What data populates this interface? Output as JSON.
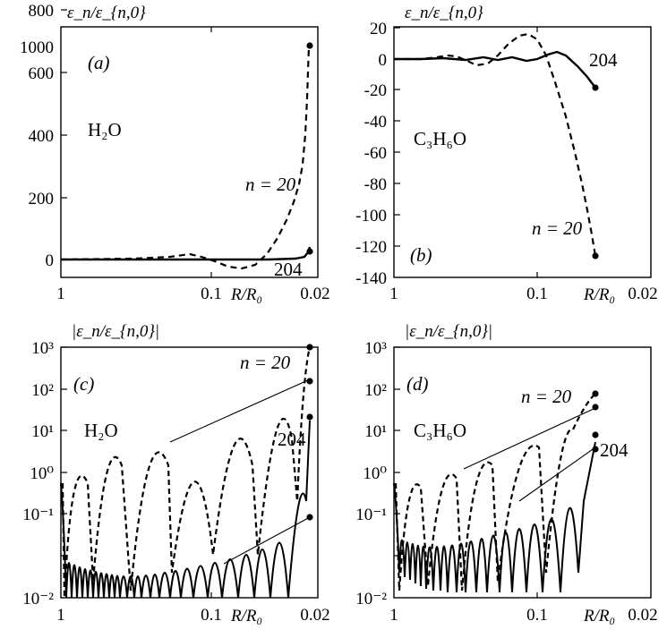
{
  "chart_data": [
    {
      "panel": "a",
      "type": "line",
      "panel_label": "(a)",
      "substance_label": "H₂O",
      "ylabel": "ε_n/ε_{n,0}",
      "xlabel": "R/R₀",
      "x_scale": "log",
      "xlim": [
        1,
        0.02
      ],
      "ylim": [
        -100,
        1100
      ],
      "xticks": [
        "1",
        "0.1",
        "0.02"
      ],
      "yticks": [
        "0",
        "200",
        "400",
        "600",
        "800",
        "1000"
      ],
      "series": [
        {
          "name": "n = 20",
          "style": "dashed",
          "x": [
            1,
            0.5,
            0.3,
            0.2,
            0.15,
            0.12,
            0.1,
            0.085,
            0.07,
            0.06,
            0.05,
            0.045,
            0.04,
            0.035,
            0.03,
            0.027,
            0.025,
            0.023,
            0.022,
            0.021,
            0.0205,
            0.02
          ],
          "y": [
            0,
            1,
            -1,
            3,
            8,
            12,
            5,
            -15,
            -40,
            -45,
            -30,
            0,
            40,
            90,
            180,
            280,
            380,
            520,
            620,
            760,
            880,
            1010
          ]
        },
        {
          "name": "204",
          "style": "solid",
          "x": [
            1,
            0.3,
            0.1,
            0.05,
            0.04,
            0.03,
            0.025,
            0.022,
            0.021,
            0.02
          ],
          "y": [
            0,
            0,
            0,
            0,
            0,
            1,
            2,
            5,
            15,
            42
          ]
        }
      ]
    },
    {
      "panel": "b",
      "type": "line",
      "panel_label": "(b)",
      "substance_label": "C₃H₆O",
      "ylabel": "ε_n/ε_{n,0}",
      "xlabel": "R/R₀",
      "x_scale": "log",
      "xlim": [
        1,
        0.02
      ],
      "ylim": [
        -140,
        20
      ],
      "xticks": [
        "1",
        "0.1",
        "0.02"
      ],
      "yticks": [
        "20",
        "0",
        "-20",
        "-40",
        "-60",
        "-80",
        "-100",
        "-120",
        "-140"
      ],
      "series": [
        {
          "name": "n = 20",
          "style": "dashed",
          "x": [
            1,
            0.7,
            0.5,
            0.4,
            0.3,
            0.25,
            0.2,
            0.17,
            0.15,
            0.13,
            0.12,
            0.1,
            0.09,
            0.08,
            0.07,
            0.065,
            0.06,
            0.055,
            0.05,
            0.045,
            0.04
          ],
          "y": [
            0,
            0,
            1,
            2,
            0,
            -3,
            -5,
            0,
            8,
            14,
            15,
            8,
            -5,
            -20,
            -45,
            -60,
            -75,
            -90,
            -102,
            -114,
            -125
          ]
        },
        {
          "name": "204",
          "style": "solid",
          "x": [
            1,
            0.5,
            0.3,
            0.2,
            0.15,
            0.12,
            0.1,
            0.09,
            0.08,
            0.07,
            0.06,
            0.05,
            0.045,
            0.04
          ],
          "y": [
            0,
            0,
            0,
            1,
            0,
            -1,
            0,
            1,
            -1,
            2,
            4,
            -3,
            -10,
            -19
          ]
        }
      ]
    },
    {
      "panel": "c",
      "type": "line",
      "panel_label": "(c)",
      "substance_label": "H₂O",
      "ylabel": "|ε_n/ε_{n,0}|",
      "xlabel": "R/R₀",
      "x_scale": "log",
      "y_scale": "log",
      "xlim": [
        1,
        0.02
      ],
      "ylim": [
        0.01,
        1000
      ],
      "xticks": [
        "1",
        "0.1",
        "0.02"
      ],
      "yticks": [
        "10³",
        "10²",
        "10¹",
        "10⁰",
        "10⁻¹",
        "10⁻²"
      ],
      "curve_labels": [
        "n = 20",
        "204"
      ],
      "endpoints": [
        1010,
        220,
        42,
        0.45
      ]
    },
    {
      "panel": "d",
      "type": "line",
      "panel_label": "(d)",
      "substance_label": "C₃H₆O",
      "ylabel": "|ε_n/ε_{n,0}|",
      "xlabel": "R/R₀",
      "x_scale": "log",
      "y_scale": "log",
      "xlim": [
        1,
        0.02
      ],
      "ylim": [
        0.01,
        1000
      ],
      "xticks": [
        "1",
        "0.1",
        "0.02"
      ],
      "yticks": [
        "10³",
        "10²",
        "10¹",
        "10⁰",
        "10⁻¹",
        "10⁻²"
      ],
      "curve_labels": [
        "n = 20",
        "204"
      ],
      "endpoints": [
        125,
        70,
        19,
        10
      ]
    }
  ]
}
